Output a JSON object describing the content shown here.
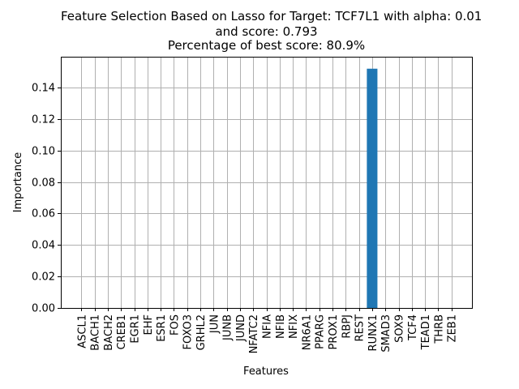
{
  "chart_data": {
    "type": "bar",
    "title_lines": [
      "Feature Selection Based on Lasso for Target: TCF7L1 with alpha: 0.01",
      "and score: 0.793",
      "Percentage of best score: 80.9%"
    ],
    "xlabel": "Features",
    "ylabel": "Importance",
    "categories": [
      "ASCL1",
      "BACH1",
      "BACH2",
      "CREB1",
      "EGR1",
      "EHF",
      "ESR1",
      "FOS",
      "FOXO3",
      "GRHL2",
      "JUN",
      "JUNB",
      "JUND",
      "NFATC2",
      "NFIA",
      "NFIB",
      "NFIX",
      "NR6A1",
      "PPARG",
      "PROX1",
      "RBPJ",
      "REST",
      "RUNX1",
      "SMAD3",
      "SOX9",
      "TCF4",
      "TEAD1",
      "THRB",
      "ZEB1"
    ],
    "values": [
      0,
      0,
      0,
      0,
      0,
      0,
      0,
      0,
      0,
      0,
      0,
      0,
      0,
      0,
      0,
      0,
      0,
      0,
      0,
      0,
      0,
      0,
      0.152,
      0,
      0,
      0,
      0,
      0,
      0
    ],
    "yticks": [
      "0.00",
      "0.02",
      "0.04",
      "0.06",
      "0.08",
      "0.10",
      "0.12",
      "0.14"
    ],
    "ylim": [
      0,
      0.1596
    ],
    "grid": true,
    "bar_color": "#1f77b4",
    "grid_color": "#b0b0b0"
  }
}
